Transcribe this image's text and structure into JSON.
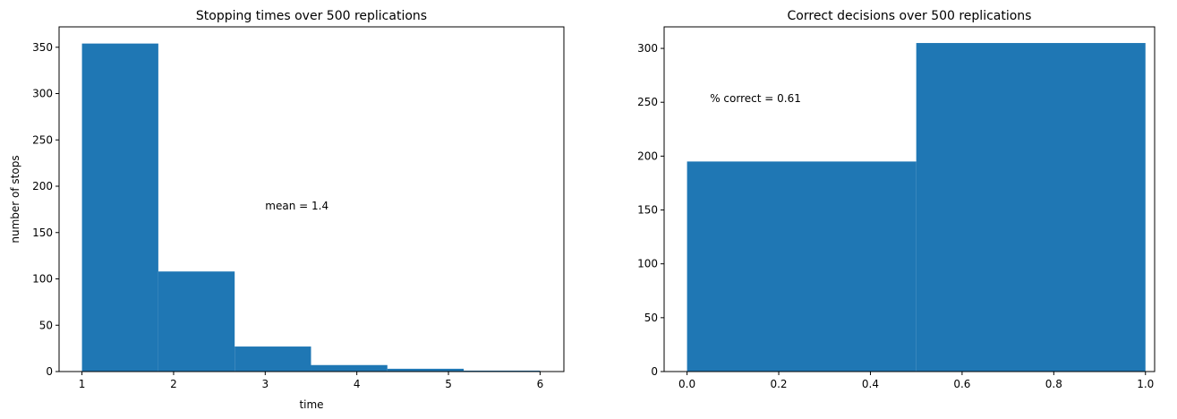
{
  "chart_data": [
    {
      "type": "bar",
      "title": "Stopping times over 500 replications",
      "xlabel": "time",
      "ylabel": "number of stops",
      "bin_edges": [
        1,
        1.8333,
        2.6667,
        3.5,
        4.3333,
        5.1667,
        6
      ],
      "values": [
        354,
        108,
        27,
        7,
        3,
        1
      ],
      "xlim": [
        0.75,
        6.26
      ],
      "ylim": [
        0,
        372
      ],
      "xticks": [
        "1",
        "2",
        "3",
        "4",
        "5",
        "6"
      ],
      "yticks": [
        "0",
        "50",
        "100",
        "150",
        "200",
        "250",
        "300",
        "350"
      ],
      "annotation": {
        "text": "mean = 1.4",
        "x": 3,
        "y": 175
      },
      "color": "#1f77b4",
      "grid": false
    },
    {
      "type": "bar",
      "title": "Correct decisions over 500 replications",
      "xlabel": "",
      "ylabel": "",
      "bin_edges": [
        0,
        0.5,
        1
      ],
      "values": [
        195,
        305
      ],
      "xlim": [
        -0.05,
        1.02
      ],
      "ylim": [
        0,
        320
      ],
      "xticks": [
        "0.0",
        "0.2",
        "0.4",
        "0.6",
        "0.8",
        "1.0"
      ],
      "yticks": [
        "0",
        "50",
        "100",
        "150",
        "200",
        "250",
        "300"
      ],
      "annotation": {
        "text": "% correct = 0.61",
        "x": 0.05,
        "y": 250
      },
      "color": "#1f77b4",
      "grid": false
    }
  ]
}
